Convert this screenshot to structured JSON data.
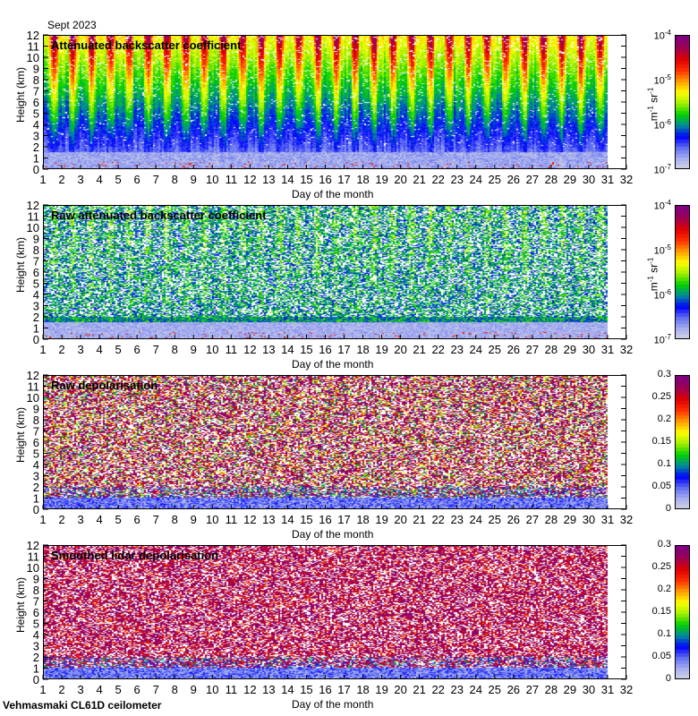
{
  "header": {
    "month_label": "Sept 2023"
  },
  "footer": {
    "instrument": "Vehmasmaki CL61D ceilometer"
  },
  "colors": {
    "cmap": [
      "#d8d8e0",
      "#a8b0f0",
      "#6070f0",
      "#0000ff",
      "#008c9c",
      "#00d000",
      "#a0f000",
      "#ffff00",
      "#ffa000",
      "#ff3000",
      "#e00000",
      "#a00050",
      "#800080"
    ]
  },
  "chart_data": [
    {
      "type": "heatmap",
      "title": "Attenuated backscatter coefficient",
      "xlabel": "Day of the month",
      "ylabel": "Height (km)",
      "xlim": [
        1,
        32
      ],
      "ylim": [
        0,
        12
      ],
      "xticks": [
        1,
        2,
        3,
        4,
        5,
        6,
        7,
        8,
        9,
        10,
        11,
        12,
        13,
        14,
        15,
        16,
        17,
        18,
        19,
        20,
        21,
        22,
        23,
        24,
        25,
        26,
        27,
        28,
        29,
        30,
        31,
        32
      ],
      "yticks": [
        0,
        1,
        2,
        3,
        4,
        5,
        6,
        7,
        8,
        9,
        10,
        11,
        12
      ],
      "data_end_day": 31,
      "colorbar": {
        "scale": "log",
        "range": [
          1e-07,
          0.0001
        ],
        "tick_base": "10",
        "tick_exponents": [
          "-7",
          "-6",
          "-5",
          "-4"
        ],
        "unit_m": "m",
        "unit_m_exp": "-1",
        "unit_sr": " sr",
        "unit_sr_exp": "-1"
      },
      "kind": "backscatter"
    },
    {
      "type": "heatmap",
      "title": "Raw attenuated backscatter coefficient",
      "xlabel": "Day of the month",
      "ylabel": "Height (km)",
      "xlim": [
        1,
        32
      ],
      "ylim": [
        0,
        12
      ],
      "xticks": [
        1,
        2,
        3,
        4,
        5,
        6,
        7,
        8,
        9,
        10,
        11,
        12,
        13,
        14,
        15,
        16,
        17,
        18,
        19,
        20,
        21,
        22,
        23,
        24,
        25,
        26,
        27,
        28,
        29,
        30,
        31,
        32
      ],
      "yticks": [
        0,
        1,
        2,
        3,
        4,
        5,
        6,
        7,
        8,
        9,
        10,
        11,
        12
      ],
      "data_end_day": 31,
      "colorbar": {
        "scale": "log",
        "range": [
          1e-07,
          0.0001
        ],
        "tick_base": "10",
        "tick_exponents": [
          "-7",
          "-6",
          "-5",
          "-4"
        ],
        "unit_m": "m",
        "unit_m_exp": "-1",
        "unit_sr": " sr",
        "unit_sr_exp": "-1"
      },
      "kind": "raw_backscatter"
    },
    {
      "type": "heatmap",
      "title": "Raw depolarisation",
      "xlabel": "Day of the month",
      "ylabel": "Height (km)",
      "xlim": [
        1,
        32
      ],
      "ylim": [
        0,
        12
      ],
      "xticks": [
        1,
        2,
        3,
        4,
        5,
        6,
        7,
        8,
        9,
        10,
        11,
        12,
        13,
        14,
        15,
        16,
        17,
        18,
        19,
        20,
        21,
        22,
        23,
        24,
        25,
        26,
        27,
        28,
        29,
        30,
        31,
        32
      ],
      "yticks": [
        0,
        1,
        2,
        3,
        4,
        5,
        6,
        7,
        8,
        9,
        10,
        11,
        12
      ],
      "data_end_day": 31,
      "colorbar": {
        "scale": "linear",
        "range": [
          0,
          0.3
        ],
        "tick_labels": [
          "0",
          "0.05",
          "0.1",
          "0.15",
          "0.2",
          "0.25",
          "0.3"
        ]
      },
      "kind": "raw_depol"
    },
    {
      "type": "heatmap",
      "title": "Smoothed lidar depolarisation",
      "xlabel": "Day of the month",
      "ylabel": "Height (km)",
      "xlim": [
        1,
        32
      ],
      "ylim": [
        0,
        12
      ],
      "xticks": [
        1,
        2,
        3,
        4,
        5,
        6,
        7,
        8,
        9,
        10,
        11,
        12,
        13,
        14,
        15,
        16,
        17,
        18,
        19,
        20,
        21,
        22,
        23,
        24,
        25,
        26,
        27,
        28,
        29,
        30,
        31,
        32
      ],
      "yticks": [
        0,
        1,
        2,
        3,
        4,
        5,
        6,
        7,
        8,
        9,
        10,
        11,
        12
      ],
      "data_end_day": 31,
      "colorbar": {
        "scale": "linear",
        "range": [
          0,
          0.3
        ],
        "tick_labels": [
          "0",
          "0.05",
          "0.1",
          "0.15",
          "0.2",
          "0.25",
          "0.3"
        ]
      },
      "kind": "smooth_depol"
    }
  ]
}
